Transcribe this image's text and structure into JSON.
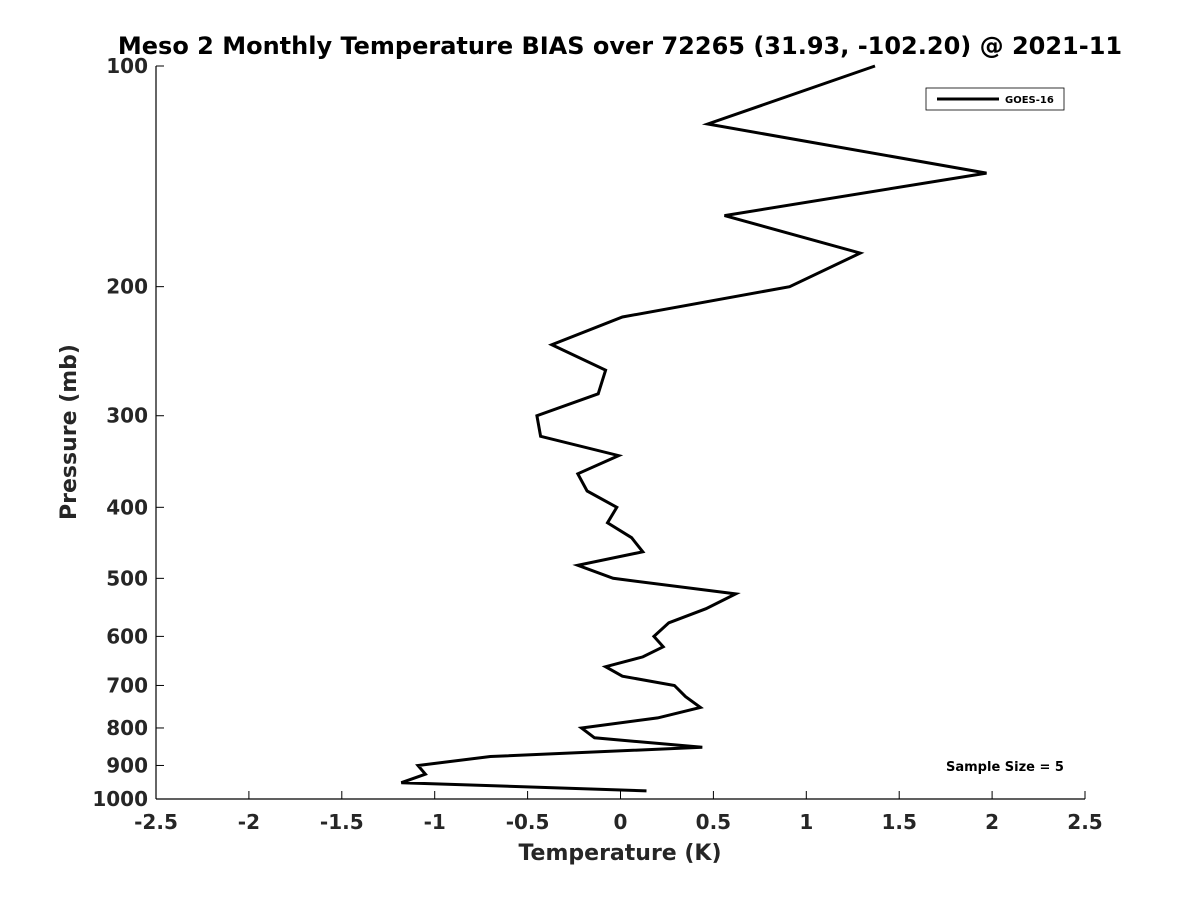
{
  "chart_data": {
    "type": "line",
    "title": "Meso 2 Monthly Temperature BIAS over 72265 (31.93, -102.20) @ 2021-11",
    "xlabel": "Temperature (K)",
    "ylabel": "Pressure (mb)",
    "xlim": [
      -2.5,
      2.5
    ],
    "ylim": [
      100,
      1000
    ],
    "y_scale": "log",
    "y_reversed": true,
    "x_ticks": [
      -2.5,
      -2,
      -1.5,
      -1,
      -0.5,
      0,
      0.5,
      1,
      1.5,
      2,
      2.5
    ],
    "x_tick_labels": [
      "-2.5",
      "-2",
      "-1.5",
      "-1",
      "-0.5",
      "0",
      "0.5",
      "1",
      "1.5",
      "2",
      "2.5"
    ],
    "y_ticks": [
      100,
      200,
      300,
      400,
      500,
      600,
      700,
      800,
      900,
      1000
    ],
    "y_tick_labels": [
      "100",
      "200",
      "300",
      "400",
      "500",
      "600",
      "700",
      "800",
      "900",
      "1000"
    ],
    "grid": false,
    "legend": {
      "position": "top-right",
      "entries": [
        "GOES-16"
      ]
    },
    "annotation": "Sample Size = 5",
    "series": [
      {
        "name": "GOES-16",
        "color": "#000000",
        "points": [
          [
            1.37,
            100
          ],
          [
            0.47,
            120
          ],
          [
            1.97,
            140
          ],
          [
            0.56,
            160
          ],
          [
            1.29,
            180
          ],
          [
            0.91,
            200
          ],
          [
            0.01,
            220
          ],
          [
            -0.37,
            240
          ],
          [
            -0.08,
            260
          ],
          [
            -0.12,
            280
          ],
          [
            -0.45,
            300
          ],
          [
            -0.43,
            320
          ],
          [
            -0.01,
            340
          ],
          [
            -0.23,
            360
          ],
          [
            -0.18,
            380
          ],
          [
            -0.02,
            400
          ],
          [
            -0.07,
            420
          ],
          [
            0.06,
            440
          ],
          [
            0.12,
            460
          ],
          [
            -0.23,
            480
          ],
          [
            -0.04,
            500
          ],
          [
            0.62,
            525
          ],
          [
            0.46,
            550
          ],
          [
            0.26,
            575
          ],
          [
            0.18,
            600
          ],
          [
            0.23,
            620
          ],
          [
            0.12,
            640
          ],
          [
            -0.08,
            660
          ],
          [
            0.01,
            680
          ],
          [
            0.29,
            700
          ],
          [
            0.35,
            725
          ],
          [
            0.43,
            750
          ],
          [
            0.2,
            775
          ],
          [
            -0.21,
            800
          ],
          [
            -0.14,
            825
          ],
          [
            0.44,
            850
          ],
          [
            -0.7,
            875
          ],
          [
            -1.09,
            900
          ],
          [
            -1.05,
            925
          ],
          [
            -1.18,
            950
          ],
          [
            0.14,
            975
          ]
        ]
      }
    ]
  }
}
